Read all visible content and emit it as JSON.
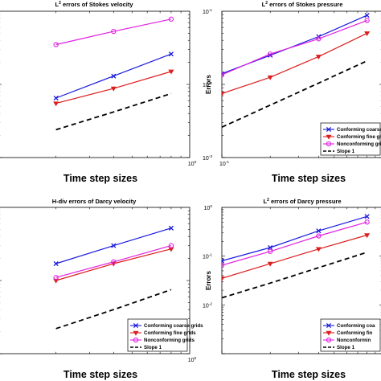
{
  "colors": {
    "conforming_coarse": "#1a1adc",
    "conforming_fine": "#dc1e1e",
    "nonconforming": "#e020e0",
    "slope": "#000000"
  },
  "chart_data": [
    {
      "type": "line",
      "title_main": "L",
      "title_sup": "2",
      "title_rest": " errors of Stokes velocity",
      "xlabel": "Time step sizes",
      "ylabel": "",
      "xscale": "log",
      "yscale": "log",
      "xlim": [
        0.1,
        1
      ],
      "ylim": [
        0.001,
        0.1
      ],
      "xticks": [
        {
          "base": "10",
          "exp": "0"
        }
      ],
      "yticks": [],
      "legend": null,
      "x": [
        0.2,
        0.4,
        0.8
      ],
      "series": [
        {
          "key": "conforming_coarse",
          "values": [
            0.0065,
            0.013,
            0.026
          ]
        },
        {
          "key": "conforming_fine",
          "values": [
            0.0055,
            0.0088,
            0.015
          ]
        },
        {
          "key": "nonconforming",
          "values": [
            0.035,
            0.053,
            0.078
          ]
        },
        {
          "key": "slope",
          "values": [
            0.0024,
            0.0042,
            0.0075
          ]
        }
      ]
    },
    {
      "type": "line",
      "title_main": "L",
      "title_sup": "2",
      "title_rest": " errors of Stokes pressure",
      "xlabel": "Time step sizes",
      "ylabel": "Errors",
      "xscale": "log",
      "yscale": "log",
      "xlim": [
        0.1,
        1
      ],
      "ylim": [
        0.001,
        0.1
      ],
      "xticks": [
        {
          "base": "10",
          "exp": "-1"
        }
      ],
      "yticks": [
        {
          "base": "10",
          "exp": "-1"
        },
        {
          "base": "10",
          "exp": "-2"
        },
        {
          "base": "10",
          "exp": "-3"
        }
      ],
      "legend": {
        "position": "bottom-right",
        "labels": [
          "Conforming coarse grids",
          "Conforming fine grids",
          "Nonconforming grids",
          "Slope 1"
        ]
      },
      "x": [
        0.1,
        0.2,
        0.4,
        0.8
      ],
      "series": [
        {
          "key": "conforming_coarse",
          "values": [
            0.014,
            0.025,
            0.045,
            0.088
          ]
        },
        {
          "key": "conforming_fine",
          "values": [
            0.0075,
            0.0125,
            0.024,
            0.05
          ]
        },
        {
          "key": "nonconforming",
          "values": [
            0.0135,
            0.026,
            0.042,
            0.075
          ]
        },
        {
          "key": "slope",
          "values": [
            0.0026,
            0.0052,
            0.0104,
            0.021
          ]
        }
      ]
    },
    {
      "type": "line",
      "title_main": "H-div errors of Darcy velocity",
      "title_sup": "",
      "title_rest": "",
      "xlabel": "Time step sizes",
      "ylabel": "",
      "xscale": "log",
      "yscale": "log",
      "xlim": [
        0.1,
        1
      ],
      "ylim": [
        0.001,
        0.1
      ],
      "xticks": [
        {
          "base": "10",
          "exp": "0"
        }
      ],
      "yticks": [],
      "legend": {
        "position": "bottom-right",
        "labels": [
          "Conforming coarse grids",
          "Conforming fine grids",
          "Nonconforming grids",
          "Slope 1"
        ]
      },
      "x": [
        0.2,
        0.4,
        0.8
      ],
      "series": [
        {
          "key": "conforming_coarse",
          "values": [
            0.017,
            0.03,
            0.052
          ]
        },
        {
          "key": "conforming_fine",
          "values": [
            0.01,
            0.017,
            0.027
          ]
        },
        {
          "key": "nonconforming",
          "values": [
            0.011,
            0.018,
            0.03
          ]
        },
        {
          "key": "slope",
          "values": [
            0.0022,
            0.004,
            0.0075
          ]
        }
      ]
    },
    {
      "type": "line",
      "title_main": "L",
      "title_sup": "2",
      "title_rest": " errors of Darcy pressure",
      "xlabel": "Time step sizes",
      "ylabel": "Errors",
      "xscale": "log",
      "yscale": "log",
      "xlim": [
        0.1,
        1
      ],
      "ylim": [
        0.001,
        1
      ],
      "xticks": [],
      "yticks": [
        {
          "base": "10",
          "exp": "0"
        },
        {
          "base": "10",
          "exp": "-1"
        },
        {
          "base": "10",
          "exp": "-2"
        }
      ],
      "legend": {
        "position": "bottom-right",
        "labels": [
          "Conforming coa",
          "Conforming fin",
          "Nonconformin",
          "Slope 1"
        ]
      },
      "x": [
        0.1,
        0.2,
        0.4,
        0.8
      ],
      "series": [
        {
          "key": "conforming_coarse",
          "values": [
            0.08,
            0.15,
            0.33,
            0.65
          ]
        },
        {
          "key": "conforming_fine",
          "values": [
            0.035,
            0.07,
            0.14,
            0.27
          ]
        },
        {
          "key": "nonconforming",
          "values": [
            0.065,
            0.125,
            0.26,
            0.5
          ]
        },
        {
          "key": "slope",
          "values": [
            0.014,
            0.028,
            0.058,
            0.12
          ]
        }
      ]
    }
  ]
}
